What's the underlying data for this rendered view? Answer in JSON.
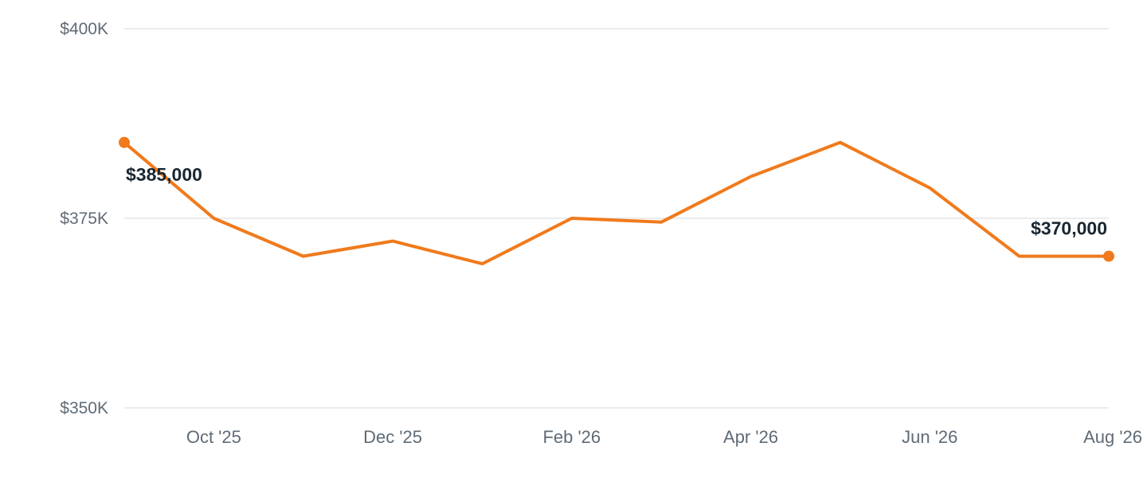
{
  "colors": {
    "line": "#f07a1c",
    "grid": "#e3e6ea",
    "tick_text": "#5f6b76",
    "label_text": "#1a2632"
  },
  "chart_data": {
    "type": "line",
    "x": [
      "Sep '25",
      "Oct '25",
      "Nov '25",
      "Dec '25",
      "Jan '26",
      "Feb '26",
      "Mar '26",
      "Apr '26",
      "May '26",
      "Jun '26",
      "Jul '26",
      "Aug '26"
    ],
    "series": [
      {
        "values": [
          385000,
          375000,
          370000,
          372000,
          369000,
          375000,
          374500,
          380500,
          385000,
          379000,
          370000,
          370000
        ]
      }
    ],
    "ylim": [
      350000,
      400000
    ],
    "y_ticks": [
      400000,
      375000,
      350000
    ],
    "y_tick_labels": [
      "$400K",
      "$375K",
      "$350K"
    ],
    "x_tick_labels": [
      {
        "x": "Oct '25",
        "label": "Oct '25"
      },
      {
        "x": "Dec '25",
        "label": "Dec '25"
      },
      {
        "x": "Feb '26",
        "label": "Feb '26"
      },
      {
        "x": "Apr '26",
        "label": "Apr '26"
      },
      {
        "x": "Jun '26",
        "label": "Jun '26"
      },
      {
        "x": "Aug '26",
        "label": "Aug '26"
      }
    ],
    "data_labels": [
      {
        "x": "Sep '25",
        "value": 385000,
        "text": "$385,000"
      },
      {
        "x": "Aug '26",
        "value": 370000,
        "text": "$370,000"
      }
    ],
    "markers_on": [
      "Sep '25",
      "Aug '26"
    ],
    "grid": true,
    "legend": "none"
  }
}
